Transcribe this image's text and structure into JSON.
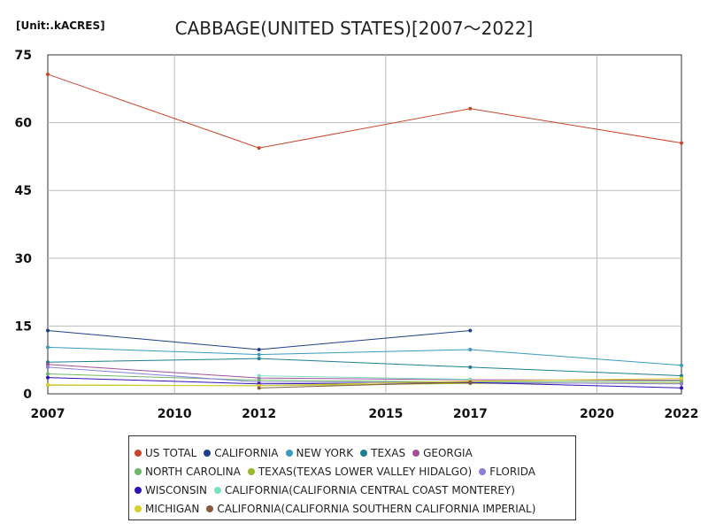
{
  "unit_label": "[Unit:.kACRES]",
  "chart_data": {
    "type": "line",
    "title": "CABBAGE(UNITED STATES)[2007～2022]",
    "xlabel": "",
    "ylabel": "",
    "x": [
      2007,
      2012,
      2017,
      2022
    ],
    "xlim": [
      2007,
      2022
    ],
    "ylim": [
      0,
      75
    ],
    "xticks": [
      2007,
      2010,
      2012,
      2015,
      2017,
      2020,
      2022
    ],
    "yticks": [
      0,
      15,
      30,
      45,
      60,
      75
    ],
    "grid": true,
    "legend_position": "bottom",
    "series": [
      {
        "name": "US TOTAL",
        "color": "#c8452c",
        "values": [
          70.7,
          54.4,
          63.1,
          55.5
        ]
      },
      {
        "name": "CALIFORNIA",
        "color": "#1f3f8a",
        "values": [
          14.0,
          9.8,
          14.0,
          null
        ]
      },
      {
        "name": "NEW YORK",
        "color": "#3a9bc0",
        "values": [
          10.3,
          8.7,
          9.8,
          6.3
        ]
      },
      {
        "name": "TEXAS",
        "color": "#1f7f8f",
        "values": [
          7.0,
          7.8,
          5.9,
          4.0
        ]
      },
      {
        "name": "GEORGIA",
        "color": "#a0509a",
        "values": [
          6.5,
          3.5,
          3.1,
          3.0
        ]
      },
      {
        "name": "NORTH CAROLINA",
        "color": "#6fb86a",
        "values": [
          4.4,
          3.0,
          2.6,
          2.8
        ]
      },
      {
        "name": "TEXAS(TEXAS LOWER VALLEY HIDALGO)",
        "color": "#9ab82a",
        "values": [
          1.9,
          1.8,
          2.3,
          2.4
        ]
      },
      {
        "name": "FLORIDA",
        "color": "#8a80d8",
        "values": [
          5.9,
          2.6,
          2.5,
          2.2
        ]
      },
      {
        "name": "WISCONSIN",
        "color": "#3010b8",
        "values": [
          3.6,
          2.2,
          2.5,
          1.3
        ]
      },
      {
        "name": "CALIFORNIA(CALIFORNIA CENTRAL COAST MONTEREY)",
        "color": "#7ee0c2",
        "values": [
          null,
          4.0,
          3.2,
          null
        ]
      },
      {
        "name": "MICHIGAN",
        "color": "#d9d02a",
        "values": [
          2.0,
          1.8,
          2.8,
          3.4
        ]
      },
      {
        "name": "CALIFORNIA(CALIFORNIA SOUTHERN CALIFORNIA IMPERIAL)",
        "color": "#8a5a3a",
        "values": [
          null,
          1.3,
          2.6,
          null
        ]
      }
    ]
  }
}
